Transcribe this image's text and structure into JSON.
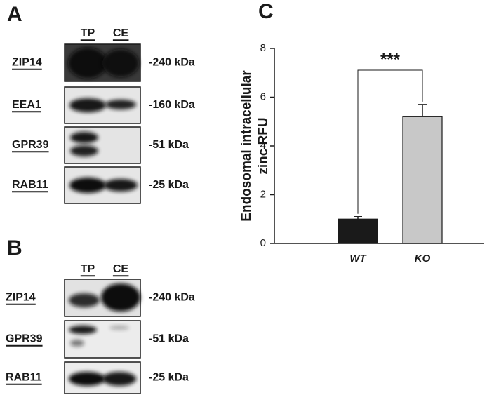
{
  "panels": [
    {
      "label": "A",
      "lanes": [
        "TP",
        "CE"
      ],
      "rows": [
        {
          "protein": "ZIP14",
          "size": "-240 kDa"
        },
        {
          "protein": "EEA1",
          "size": "-160 kDa"
        },
        {
          "protein": "GPR39",
          "size": "-51 kDa"
        },
        {
          "protein": "RAB11",
          "size": "-25 kDa"
        }
      ]
    },
    {
      "label": "B",
      "lanes": [
        "TP",
        "CE"
      ],
      "rows": [
        {
          "protein": "ZIP14",
          "size": "-240 kDa"
        },
        {
          "protein": "GPR39",
          "size": "-51 kDa"
        },
        {
          "protein": "RAB11",
          "size": "-25 kDa"
        }
      ]
    }
  ],
  "chart_data": {
    "type": "bar",
    "panel_label": "C",
    "ylabel": [
      "Endosomal intracellular",
      "zinc RFU"
    ],
    "categories": [
      "WT",
      "KO"
    ],
    "values": [
      1.0,
      5.2
    ],
    "errors": [
      0.1,
      0.5
    ],
    "colors": [
      "#1a1a1a",
      "#c8c8c8"
    ],
    "ylim": [
      0,
      8
    ],
    "yticks": [
      0,
      2,
      4,
      6,
      8
    ],
    "annotation": "***"
  }
}
